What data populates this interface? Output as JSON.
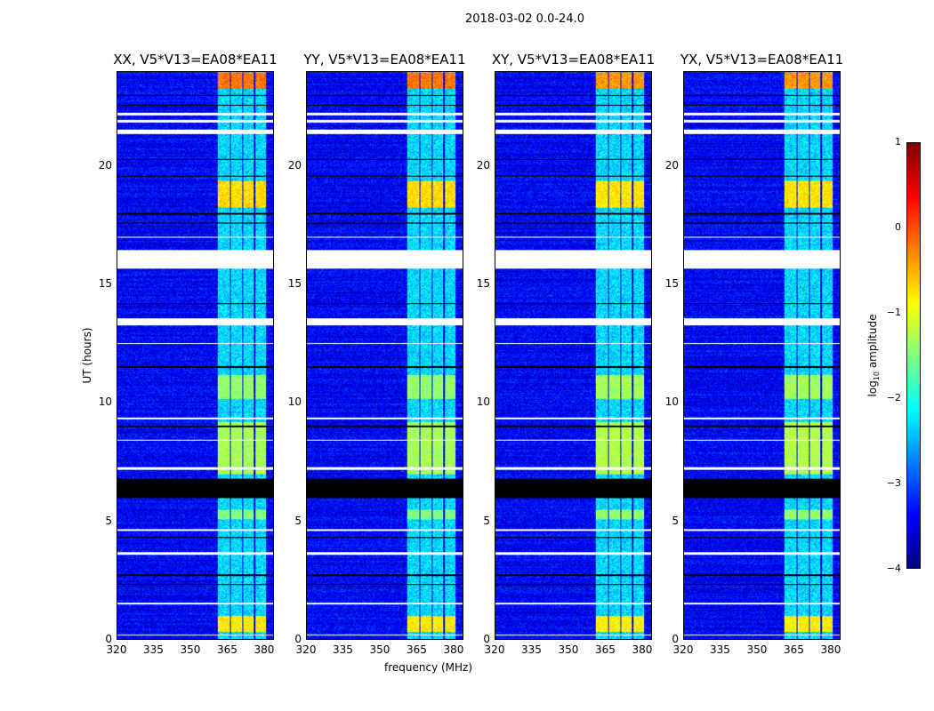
{
  "chart_data": {
    "type": "heatmap",
    "title": "2018-03-02 0.0-24.0",
    "xlabel": "frequency (MHz)",
    "ylabel": "UT (hours)",
    "xlim": [
      320,
      384
    ],
    "ylim": [
      0,
      24
    ],
    "xticks": [
      "320",
      "335",
      "350",
      "365",
      "380"
    ],
    "xtick_values": [
      320,
      335,
      350,
      365,
      380
    ],
    "yticks": [
      "0",
      "5",
      "10",
      "15",
      "20"
    ],
    "ytick_values": [
      0,
      5,
      10,
      15,
      20
    ],
    "panels": [
      {
        "title": "XX, V5*V13=EA08*EA11"
      },
      {
        "title": "YY, V5*V13=EA08*EA11"
      },
      {
        "title": "XY, V5*V13=EA08*EA11"
      },
      {
        "title": "YX, V5*V13=EA08*EA11"
      }
    ],
    "bright_bands_mhz": [
      [
        361,
        366
      ],
      [
        366.5,
        371
      ],
      [
        371.5,
        376
      ],
      [
        376.5,
        381
      ]
    ],
    "bright_times_hours": [
      [
        23.3,
        24,
        -0.2
      ],
      [
        18.3,
        19.4,
        -0.7
      ],
      [
        10.2,
        11.2,
        -1.4
      ],
      [
        7,
        9.2,
        -1.3
      ],
      [
        0.3,
        1,
        -0.8
      ],
      [
        5.1,
        5.5,
        -1.5
      ]
    ],
    "flagged_hours_white": [
      [
        15.7,
        16.5
      ],
      [
        13.3,
        13.6
      ],
      [
        21.4,
        21.6
      ],
      [
        21.9,
        22.0
      ],
      [
        22.2,
        22.3
      ],
      [
        9.3,
        9.4
      ],
      [
        7.2,
        7.3
      ],
      [
        3.6,
        3.7
      ],
      [
        4.6,
        4.65
      ],
      [
        1.5,
        1.55
      ],
      [
        0.15,
        0.2
      ],
      [
        17.0,
        17.05
      ],
      [
        12.5,
        12.55
      ],
      [
        8.4,
        8.45
      ]
    ],
    "flagged_hours_black": [
      [
        6.0,
        6.8
      ],
      [
        23.0,
        23.05
      ],
      [
        22.6,
        22.65
      ],
      [
        20.3,
        20.35
      ],
      [
        19.6,
        19.65
      ],
      [
        18.0,
        18.05
      ],
      [
        17.6,
        17.65
      ],
      [
        14.2,
        14.25
      ],
      [
        11.5,
        11.55
      ],
      [
        9.0,
        9.05
      ],
      [
        4.3,
        4.35
      ],
      [
        2.7,
        2.75
      ],
      [
        2.3,
        2.35
      ]
    ],
    "colorbar": {
      "label": "log10 amplitude",
      "label_main": "log",
      "label_sub": "10",
      "label_rest": " amplitude",
      "range": [
        -4,
        1
      ],
      "ticks": [
        "1",
        "0",
        "−1",
        "−2",
        "−3",
        "−4"
      ],
      "tick_values": [
        1,
        0,
        -1,
        -2,
        -3,
        -4
      ],
      "colormap": "jet"
    }
  }
}
